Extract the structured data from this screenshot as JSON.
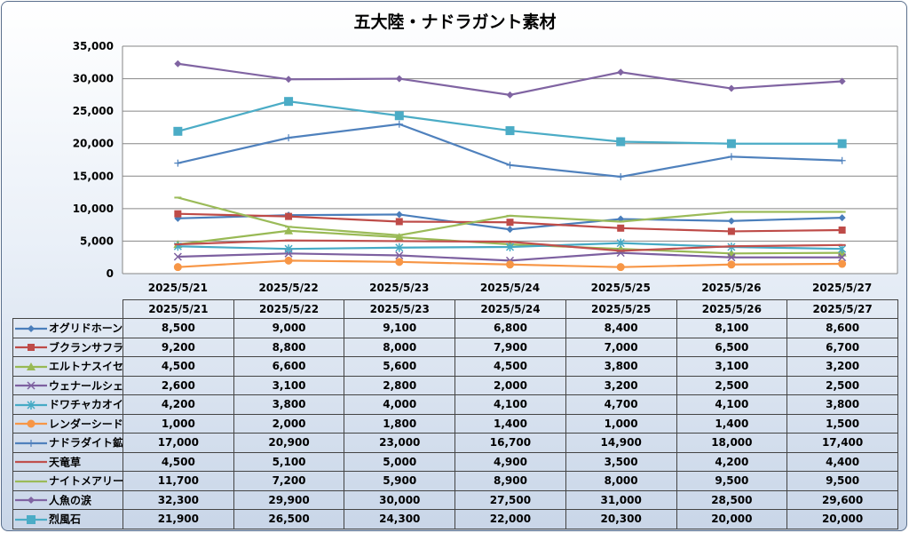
{
  "chart_data": {
    "type": "line",
    "title": "五大陸・ナドラガント素材",
    "categories": [
      "2025/5/21",
      "2025/5/22",
      "2025/5/23",
      "2025/5/24",
      "2025/5/25",
      "2025/5/26",
      "2025/5/27"
    ],
    "ylim": [
      0,
      35000
    ],
    "yticks": [
      "0",
      "5,000",
      "10,000",
      "15,000",
      "20,000",
      "25,000",
      "30,000",
      "35,000"
    ],
    "ytick_values": [
      0,
      5000,
      10000,
      15000,
      20000,
      25000,
      30000,
      35000
    ],
    "grid": true,
    "legend": "data-table",
    "series": [
      {
        "name": "オグリドホーン",
        "color": "#4a7ebb",
        "marker": "diamond",
        "values": [
          8500,
          9000,
          9100,
          6800,
          8400,
          8100,
          8600
        ],
        "labels": [
          "8,500",
          "9,000",
          "9,100",
          "6,800",
          "8,400",
          "8,100",
          "8,600"
        ]
      },
      {
        "name": "ブクランサフラン",
        "color": "#be4b48",
        "marker": "square",
        "values": [
          9200,
          8800,
          8000,
          7900,
          7000,
          6500,
          6700
        ],
        "labels": [
          "9,200",
          "8,800",
          "8,000",
          "7,900",
          "7,000",
          "6,500",
          "6,700"
        ]
      },
      {
        "name": "エルトナスイセン",
        "color": "#98b954",
        "marker": "triangle",
        "values": [
          4500,
          6600,
          5600,
          4500,
          3800,
          3100,
          3200
        ],
        "labels": [
          "4,500",
          "6,600",
          "5,600",
          "4,500",
          "3,800",
          "3,100",
          "3,200"
        ]
      },
      {
        "name": "ウェナールシェル",
        "color": "#7d60a0",
        "marker": "x",
        "values": [
          2600,
          3100,
          2800,
          2000,
          3200,
          2500,
          2500
        ],
        "labels": [
          "2,600",
          "3,100",
          "2,800",
          "2,000",
          "3,200",
          "2,500",
          "2,500"
        ]
      },
      {
        "name": "ドワチャカオイル",
        "color": "#46aac5",
        "marker": "star",
        "values": [
          4200,
          3800,
          4000,
          4100,
          4700,
          4100,
          3800
        ],
        "labels": [
          "4,200",
          "3,800",
          "4,000",
          "4,100",
          "4,700",
          "4,100",
          "3,800"
        ]
      },
      {
        "name": "レンダーシード",
        "color": "#f79646",
        "marker": "circle",
        "values": [
          1000,
          2000,
          1800,
          1400,
          1000,
          1400,
          1500
        ],
        "labels": [
          "1,000",
          "2,000",
          "1,800",
          "1,400",
          "1,000",
          "1,400",
          "1,500"
        ]
      },
      {
        "name": "ナドラダイト鉱石",
        "color": "#4f81bd",
        "marker": "plus",
        "values": [
          17000,
          20900,
          23000,
          16700,
          14900,
          18000,
          17400
        ],
        "labels": [
          "17,000",
          "20,900",
          "23,000",
          "16,700",
          "14,900",
          "18,000",
          "17,400"
        ]
      },
      {
        "name": "天竜草",
        "color": "#c0504d",
        "marker": "dash",
        "values": [
          4500,
          5100,
          5000,
          4900,
          3500,
          4200,
          4400
        ],
        "labels": [
          "4,500",
          "5,100",
          "5,000",
          "4,900",
          "3,500",
          "4,200",
          "4,400"
        ]
      },
      {
        "name": "ナイトメアリーフ",
        "color": "#9bbb59",
        "marker": "dash",
        "values": [
          11700,
          7200,
          5900,
          8900,
          8000,
          9500,
          9500
        ],
        "labels": [
          "11,700",
          "7,200",
          "5,900",
          "8,900",
          "8,000",
          "9,500",
          "9,500"
        ]
      },
      {
        "name": "人魚の涙",
        "color": "#8064a2",
        "marker": "diamond",
        "values": [
          32300,
          29900,
          30000,
          27500,
          31000,
          28500,
          29600
        ],
        "labels": [
          "32,300",
          "29,900",
          "30,000",
          "27,500",
          "31,000",
          "28,500",
          "29,600"
        ]
      },
      {
        "name": "烈風石",
        "color": "#4bacc6",
        "marker": "bigsquare",
        "values": [
          21900,
          26500,
          24300,
          22000,
          20300,
          20000,
          20000
        ],
        "labels": [
          "21,900",
          "26,500",
          "24,300",
          "22,000",
          "20,300",
          "20,000",
          "20,000"
        ]
      }
    ]
  }
}
